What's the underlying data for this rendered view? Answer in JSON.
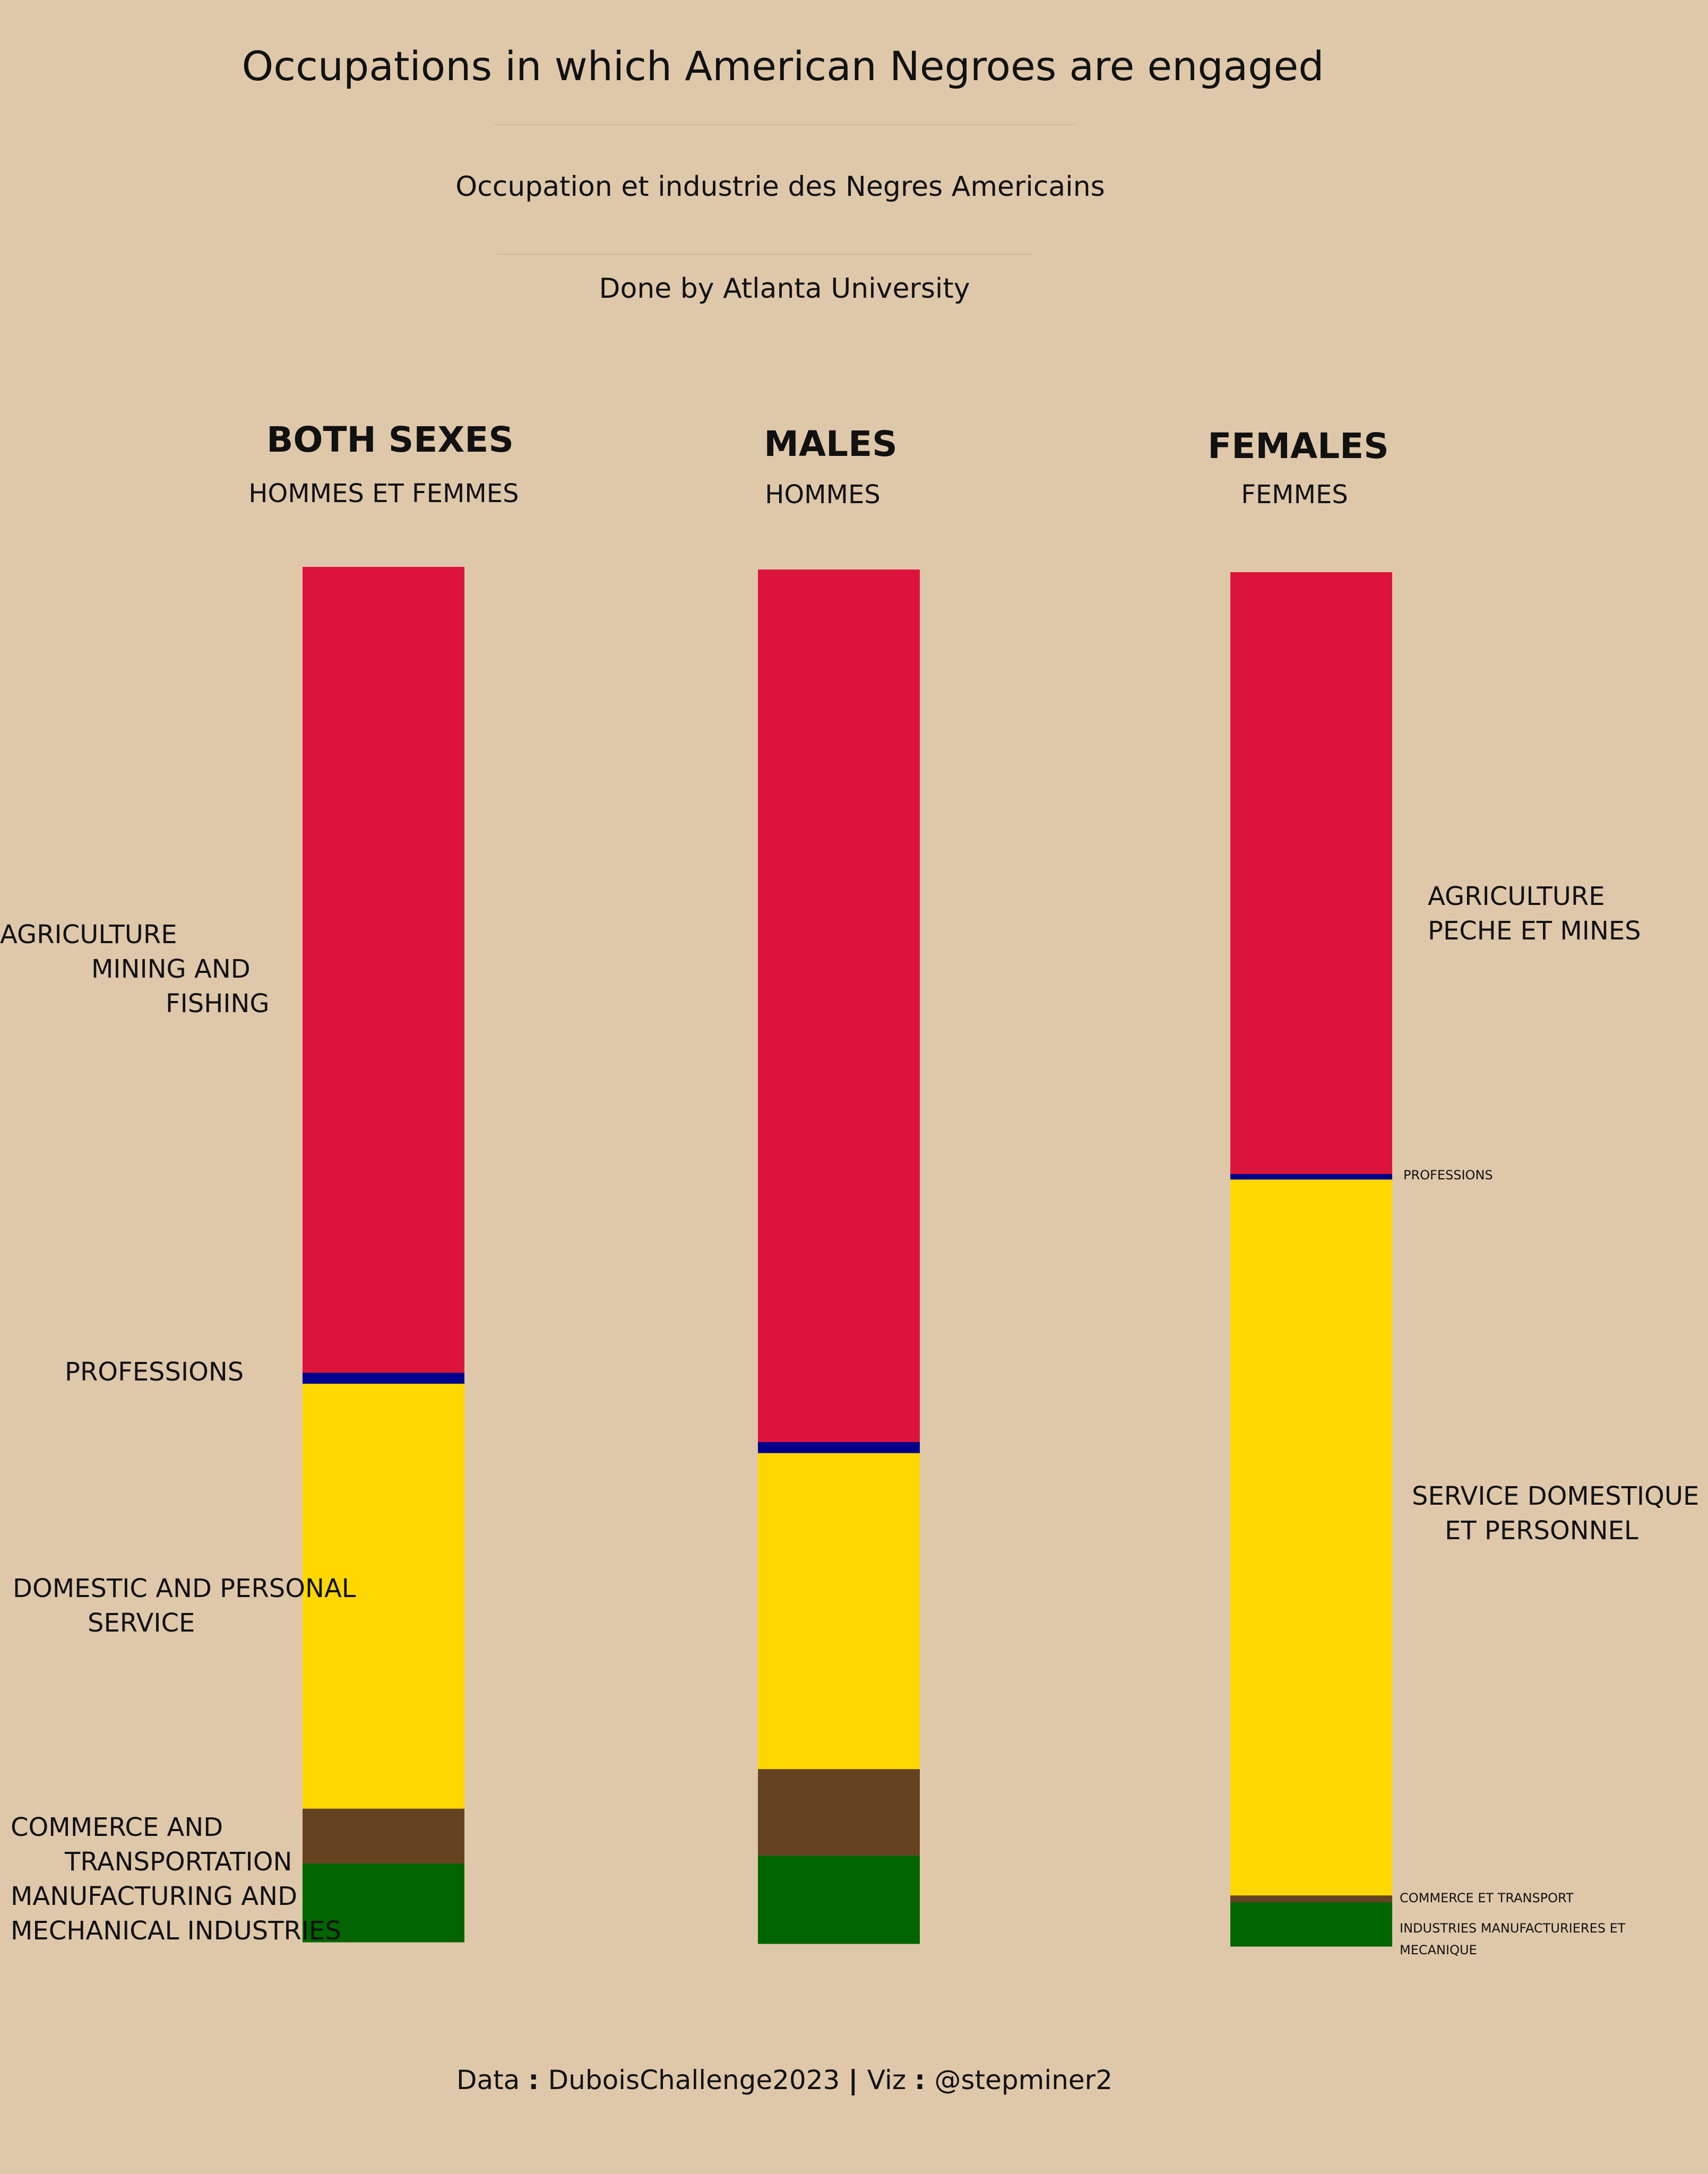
{
  "title": "Occupations in which American Negroes are engaged",
  "subtitle": "Occupation et industrie des Negres Americains",
  "credit": "Done by Atlanta University",
  "columns": [
    {
      "heading": "BOTH SEXES",
      "subheading": "HOMMES ET FEMMES"
    },
    {
      "heading": "MALES",
      "subheading": "HOMMES"
    },
    {
      "heading": "FEMALES",
      "subheading": "FEMMES"
    }
  ],
  "left_labels": {
    "agriculture": [
      "AGRICULTURE",
      "MINING AND",
      "FISHING"
    ],
    "professions": [
      "PROFESSIONS"
    ],
    "domestic": [
      "DOMESTIC AND PERSONAL",
      "SERVICE"
    ],
    "commerce": [
      "COMMERCE AND",
      "TRANSPORTATION"
    ],
    "manufacturing": [
      "MANUFACTURING AND",
      "MECHANICAL INDUSTRIES"
    ]
  },
  "right_labels": {
    "agriculture": [
      "AGRICULTURE",
      "PECHE ET MINES"
    ],
    "professions": [
      "PROFESSIONS"
    ],
    "domestic": [
      "SERVICE DOMESTIQUE",
      "ET PERSONNEL"
    ],
    "commerce": [
      "COMMERCE ET TRANSPORT"
    ],
    "manufacturing": [
      "INDUSTRIES MANUFACTURIERES ET",
      "MECANIQUE"
    ]
  },
  "footer": {
    "data_label": "Data",
    "data_value": "DuboisChallenge2023",
    "viz_label": "Viz",
    "viz_value": "@stepminer2"
  },
  "chart_data": {
    "type": "bar",
    "stacked": true,
    "unit": "percent",
    "categories": [
      "BOTH SEXES",
      "MALES",
      "FEMALES"
    ],
    "series": [
      {
        "name": "AGRICULTURE MINING AND FISHING",
        "color": "#dc143c",
        "values": [
          58.6,
          63.5,
          43.8
        ]
      },
      {
        "name": "PROFESSIONS",
        "color": "#00008b",
        "values": [
          0.8,
          0.8,
          0.4
        ]
      },
      {
        "name": "DOMESTIC AND PERSONAL SERVICE",
        "color": "#ffd700",
        "values": [
          30.9,
          23.0,
          52.1
        ]
      },
      {
        "name": "COMMERCE AND TRANSPORTATION",
        "color": "#654321",
        "values": [
          4.0,
          6.3,
          0.5
        ]
      },
      {
        "name": "MANUFACTURING AND MECHANICAL INDUSTRIES",
        "color": "#006400",
        "values": [
          5.7,
          6.4,
          3.2
        ]
      }
    ]
  }
}
